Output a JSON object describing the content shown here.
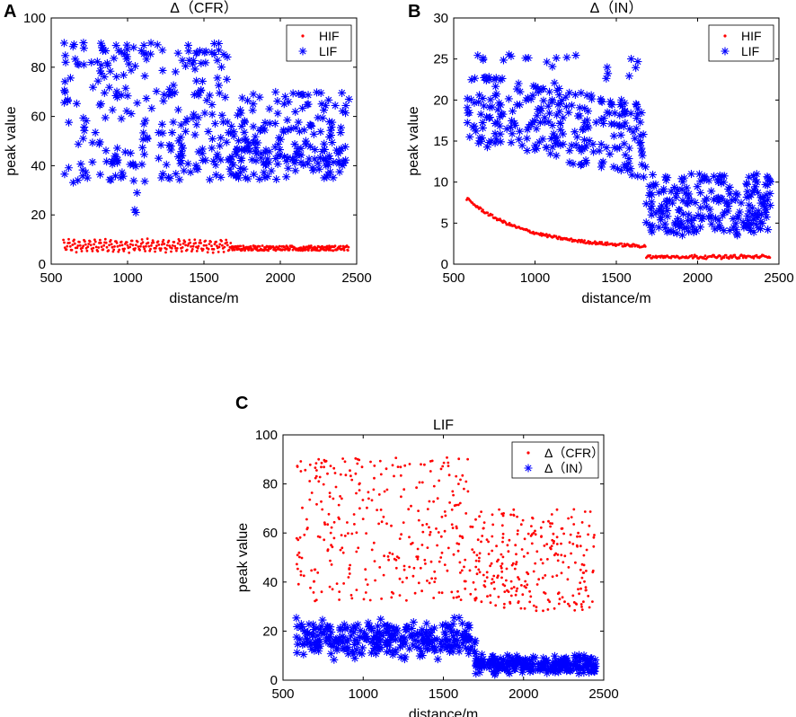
{
  "panels": [
    {
      "letter": "A"
    },
    {
      "letter": "B"
    },
    {
      "letter": "C"
    }
  ],
  "chart_data": [
    {
      "type": "scatter",
      "title": "Δ（CFR）",
      "xlabel": "distance/m",
      "ylabel": "peak value",
      "xlim": [
        500,
        2500
      ],
      "ylim": [
        0,
        100
      ],
      "xticks": [
        500,
        1000,
        1500,
        2000,
        2500
      ],
      "yticks": [
        0,
        20,
        40,
        60,
        80,
        100
      ],
      "legend_position": "top-right",
      "series": [
        {
          "name": "HIF",
          "marker": "dot",
          "color": "#ff0000",
          "x_range": [
            580,
            2450
          ],
          "segments": [
            {
              "x": [
                580,
                1680
              ],
              "y_center": 7.5,
              "y_amp": 2.5,
              "waves": 32
            },
            {
              "x": [
                1680,
                2450
              ],
              "y_center": 6.5,
              "y_amp": 1.0,
              "waves": 0
            }
          ]
        },
        {
          "name": "LIF",
          "marker": "asterisk",
          "color": "#0000ff",
          "segments": [
            {
              "x": [
                580,
                1680
              ],
              "bands": [
                [
                  80,
                  90
                ],
                [
                  60,
                  80
                ],
                [
                  40,
                  60
                ],
                [
                  33,
                  45
                ]
              ],
              "outliers": [
                21,
                22,
                29
              ]
            },
            {
              "x": [
                1680,
                2450
              ],
              "bands": [
                [
                  55,
                  70
                ],
                [
                  40,
                  55
                ],
                [
                  34,
                  48
                ]
              ]
            }
          ]
        }
      ]
    },
    {
      "type": "scatter",
      "title": "Δ（IN）",
      "xlabel": "distance/m",
      "ylabel": "peak value",
      "xlim": [
        500,
        2500
      ],
      "ylim": [
        0,
        30
      ],
      "xticks": [
        500,
        1000,
        1500,
        2000,
        2500
      ],
      "yticks": [
        0,
        5,
        10,
        15,
        20,
        25,
        30
      ],
      "legend_position": "top-right",
      "series": [
        {
          "name": "HIF",
          "marker": "dot",
          "color": "#ff0000",
          "curve": {
            "x_start": 580,
            "y_start": 8.0,
            "x_mid": 1680,
            "y_mid": 2.2,
            "x_end": 2450,
            "y_end": 0.8
          }
        },
        {
          "name": "LIF",
          "marker": "asterisk",
          "color": "#0000ff",
          "segments": [
            {
              "x": [
                580,
                1680
              ],
              "y_range": [
                10,
                26
              ],
              "trend": "decreasing"
            },
            {
              "x": [
                1680,
                2450
              ],
              "y_range": [
                3.5,
                11
              ]
            }
          ]
        }
      ]
    },
    {
      "type": "scatter",
      "title": "LIF",
      "xlabel": "distance/m",
      "ylabel": "peak value",
      "xlim": [
        500,
        2500
      ],
      "ylim": [
        0,
        100
      ],
      "xticks": [
        500,
        1000,
        1500,
        2000,
        2500
      ],
      "yticks": [
        0,
        20,
        40,
        60,
        80,
        100
      ],
      "legend_position": "top-right",
      "series": [
        {
          "name": "Δ（CFR）",
          "marker": "dot",
          "color": "#ff0000",
          "segments": [
            {
              "x": [
                580,
                1680
              ],
              "y_range": [
                32,
                91
              ]
            },
            {
              "x": [
                1680,
                2450
              ],
              "y_range": [
                28,
                70
              ]
            }
          ]
        },
        {
          "name": "Δ（IN）",
          "marker": "asterisk",
          "color": "#0000ff",
          "segments": [
            {
              "x": [
                580,
                1700
              ],
              "y_range": [
                8,
                26
              ]
            },
            {
              "x": [
                1700,
                2450
              ],
              "y_range": [
                2,
                11
              ]
            }
          ]
        }
      ]
    }
  ]
}
